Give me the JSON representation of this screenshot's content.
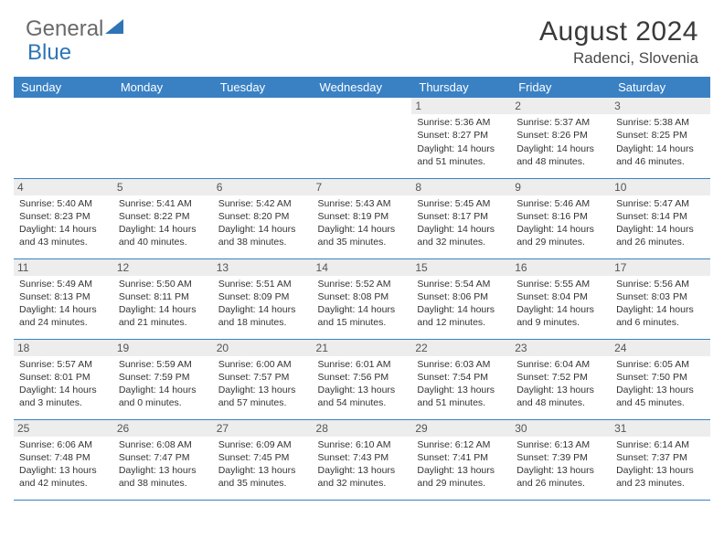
{
  "logo": {
    "text1": "General",
    "text2": "Blue"
  },
  "title": "August 2024",
  "location": "Radenci, Slovenia",
  "colors": {
    "header_bg": "#3a81c4",
    "header_fg": "#ffffff",
    "daynum_bg": "#ededed",
    "border": "#3a81c4",
    "text": "#333333"
  },
  "weekdays": [
    "Sunday",
    "Monday",
    "Tuesday",
    "Wednesday",
    "Thursday",
    "Friday",
    "Saturday"
  ],
  "weeks": [
    [
      null,
      null,
      null,
      null,
      {
        "n": "1",
        "sr": "5:36 AM",
        "ss": "8:27 PM",
        "dl": "14 hours and 51 minutes."
      },
      {
        "n": "2",
        "sr": "5:37 AM",
        "ss": "8:26 PM",
        "dl": "14 hours and 48 minutes."
      },
      {
        "n": "3",
        "sr": "5:38 AM",
        "ss": "8:25 PM",
        "dl": "14 hours and 46 minutes."
      }
    ],
    [
      {
        "n": "4",
        "sr": "5:40 AM",
        "ss": "8:23 PM",
        "dl": "14 hours and 43 minutes."
      },
      {
        "n": "5",
        "sr": "5:41 AM",
        "ss": "8:22 PM",
        "dl": "14 hours and 40 minutes."
      },
      {
        "n": "6",
        "sr": "5:42 AM",
        "ss": "8:20 PM",
        "dl": "14 hours and 38 minutes."
      },
      {
        "n": "7",
        "sr": "5:43 AM",
        "ss": "8:19 PM",
        "dl": "14 hours and 35 minutes."
      },
      {
        "n": "8",
        "sr": "5:45 AM",
        "ss": "8:17 PM",
        "dl": "14 hours and 32 minutes."
      },
      {
        "n": "9",
        "sr": "5:46 AM",
        "ss": "8:16 PM",
        "dl": "14 hours and 29 minutes."
      },
      {
        "n": "10",
        "sr": "5:47 AM",
        "ss": "8:14 PM",
        "dl": "14 hours and 26 minutes."
      }
    ],
    [
      {
        "n": "11",
        "sr": "5:49 AM",
        "ss": "8:13 PM",
        "dl": "14 hours and 24 minutes."
      },
      {
        "n": "12",
        "sr": "5:50 AM",
        "ss": "8:11 PM",
        "dl": "14 hours and 21 minutes."
      },
      {
        "n": "13",
        "sr": "5:51 AM",
        "ss": "8:09 PM",
        "dl": "14 hours and 18 minutes."
      },
      {
        "n": "14",
        "sr": "5:52 AM",
        "ss": "8:08 PM",
        "dl": "14 hours and 15 minutes."
      },
      {
        "n": "15",
        "sr": "5:54 AM",
        "ss": "8:06 PM",
        "dl": "14 hours and 12 minutes."
      },
      {
        "n": "16",
        "sr": "5:55 AM",
        "ss": "8:04 PM",
        "dl": "14 hours and 9 minutes."
      },
      {
        "n": "17",
        "sr": "5:56 AM",
        "ss": "8:03 PM",
        "dl": "14 hours and 6 minutes."
      }
    ],
    [
      {
        "n": "18",
        "sr": "5:57 AM",
        "ss": "8:01 PM",
        "dl": "14 hours and 3 minutes."
      },
      {
        "n": "19",
        "sr": "5:59 AM",
        "ss": "7:59 PM",
        "dl": "14 hours and 0 minutes."
      },
      {
        "n": "20",
        "sr": "6:00 AM",
        "ss": "7:57 PM",
        "dl": "13 hours and 57 minutes."
      },
      {
        "n": "21",
        "sr": "6:01 AM",
        "ss": "7:56 PM",
        "dl": "13 hours and 54 minutes."
      },
      {
        "n": "22",
        "sr": "6:03 AM",
        "ss": "7:54 PM",
        "dl": "13 hours and 51 minutes."
      },
      {
        "n": "23",
        "sr": "6:04 AM",
        "ss": "7:52 PM",
        "dl": "13 hours and 48 minutes."
      },
      {
        "n": "24",
        "sr": "6:05 AM",
        "ss": "7:50 PM",
        "dl": "13 hours and 45 minutes."
      }
    ],
    [
      {
        "n": "25",
        "sr": "6:06 AM",
        "ss": "7:48 PM",
        "dl": "13 hours and 42 minutes."
      },
      {
        "n": "26",
        "sr": "6:08 AM",
        "ss": "7:47 PM",
        "dl": "13 hours and 38 minutes."
      },
      {
        "n": "27",
        "sr": "6:09 AM",
        "ss": "7:45 PM",
        "dl": "13 hours and 35 minutes."
      },
      {
        "n": "28",
        "sr": "6:10 AM",
        "ss": "7:43 PM",
        "dl": "13 hours and 32 minutes."
      },
      {
        "n": "29",
        "sr": "6:12 AM",
        "ss": "7:41 PM",
        "dl": "13 hours and 29 minutes."
      },
      {
        "n": "30",
        "sr": "6:13 AM",
        "ss": "7:39 PM",
        "dl": "13 hours and 26 minutes."
      },
      {
        "n": "31",
        "sr": "6:14 AM",
        "ss": "7:37 PM",
        "dl": "13 hours and 23 minutes."
      }
    ]
  ],
  "labels": {
    "sunrise": "Sunrise:",
    "sunset": "Sunset:",
    "daylight": "Daylight:"
  }
}
